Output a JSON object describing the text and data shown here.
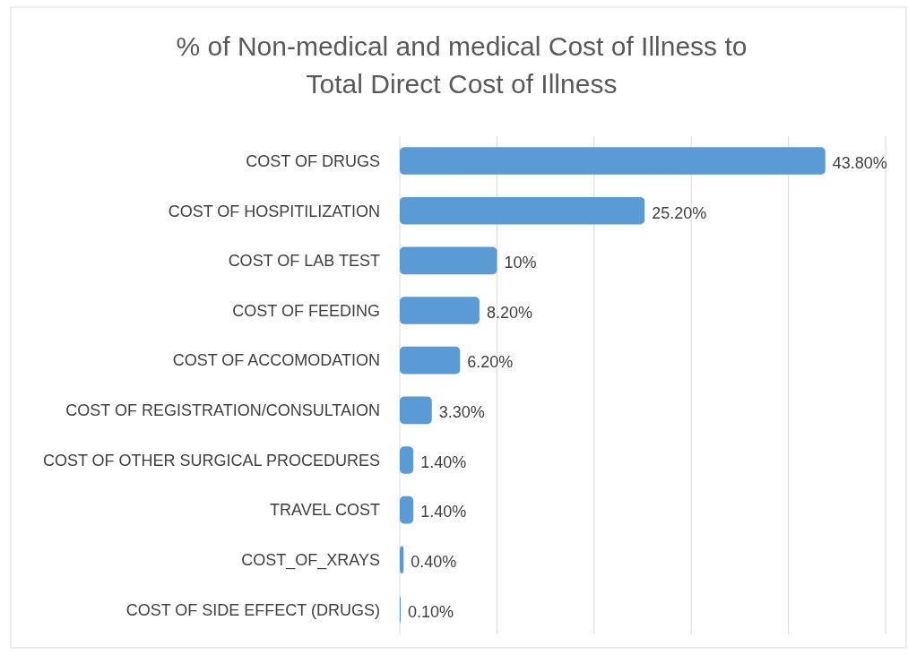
{
  "chart_data": {
    "type": "bar",
    "orientation": "horizontal",
    "title": "% of Non-medical and medical Cost of Illness to Total Direct Cost of Illness",
    "categories": [
      "COST OF DRUGS",
      "COST OF HOSPITILIZATION",
      "COST OF LAB TEST",
      "COST OF FEEDING",
      "COST OF ACCOMODATION",
      "COST OF REGISTRATION/CONSULTAION",
      "COST OF OTHER SURGICAL PROCEDURES",
      "TRAVEL COST",
      "COST_OF_XRAYS",
      "COST OF SIDE EFFECT (DRUGS)"
    ],
    "values": [
      43.8,
      25.2,
      10,
      8.2,
      6.2,
      3.3,
      1.4,
      1.4,
      0.4,
      0.1
    ],
    "value_labels": [
      "43.80%",
      "25.20%",
      "10%",
      "8.20%",
      "6.20%",
      "3.30%",
      "1.40%",
      "1.40%",
      "0.40%",
      "0.10%"
    ],
    "color": "#5b9bd5",
    "xlim": [
      0,
      50
    ],
    "xticks": [
      {
        "value": 0,
        "label": null
      },
      {
        "value": 10,
        "label": null
      },
      {
        "value": 20,
        "label": null
      },
      {
        "value": 30,
        "label": null
      },
      {
        "value": 40,
        "label": null
      },
      {
        "value": 50,
        "label": null
      }
    ],
    "grid": "x",
    "tick_labels": "y"
  }
}
